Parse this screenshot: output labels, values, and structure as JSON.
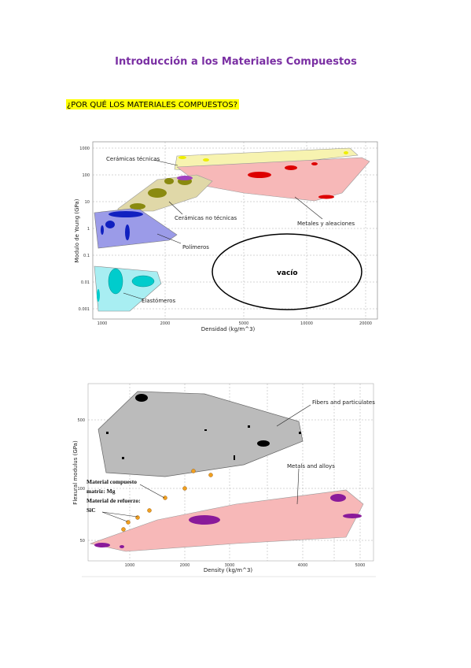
{
  "header": {
    "title": "Introducción a los Materiales Compuestos",
    "subtitle": "¿POR QUÉ LOS MATERIALES COMPUESTOS?"
  },
  "figure1": {
    "labels": [
      "Cerámicas técnicas",
      "Cerámicas no técnicas",
      "Metales y aleaciones",
      "Polímeros",
      "Elastómeros",
      "vacío"
    ],
    "x_label": "Densidad (kg/m^3)",
    "y_label": "Modulo de Young (GPa)",
    "yticks": [
      "1000",
      "100",
      "10",
      "1",
      "0.1",
      "0.01",
      "0.001"
    ],
    "xticks": [
      "1000",
      "2000",
      "5000",
      "10000",
      "20000"
    ]
  },
  "figure2": {
    "labels": [
      "Fibers and particulates",
      "Metals and alloys"
    ],
    "annotation": [
      "Material compuesto",
      "matriz: Mg",
      "Material de refuerzo:",
      "SiC"
    ],
    "x_label": "Density (kg/m^3)",
    "y_label": "Flexural modulus (GPa)",
    "yticks": [
      "500",
      "100",
      "50"
    ],
    "xticks": [
      "1000",
      "2000",
      "3000",
      "4000",
      "5000"
    ]
  }
}
